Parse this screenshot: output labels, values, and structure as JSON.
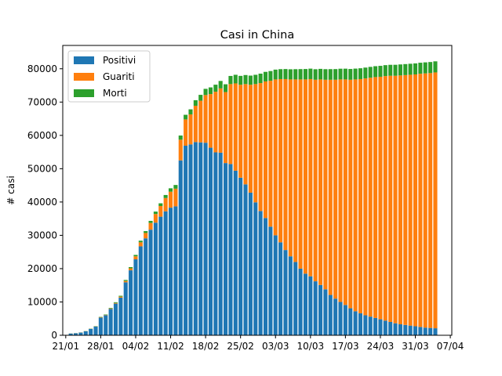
{
  "chart_data": {
    "type": "bar",
    "stacked": true,
    "title": "Casi in China",
    "xlabel": "",
    "ylabel": "# casi",
    "ylim": [
      0,
      87000
    ],
    "yticks": [
      0,
      10000,
      20000,
      30000,
      40000,
      50000,
      60000,
      70000,
      80000
    ],
    "x_start": "2020-01-22",
    "xticks": [
      {
        "date": "2020-01-21",
        "label": "21/01"
      },
      {
        "date": "2020-01-28",
        "label": "28/01"
      },
      {
        "date": "2020-02-04",
        "label": "04/02"
      },
      {
        "date": "2020-02-11",
        "label": "11/02"
      },
      {
        "date": "2020-02-18",
        "label": "18/02"
      },
      {
        "date": "2020-02-25",
        "label": "25/02"
      },
      {
        "date": "2020-03-03",
        "label": "03/03"
      },
      {
        "date": "2020-03-10",
        "label": "10/03"
      },
      {
        "date": "2020-03-17",
        "label": "17/03"
      },
      {
        "date": "2020-03-24",
        "label": "24/03"
      },
      {
        "date": "2020-03-31",
        "label": "31/03"
      },
      {
        "date": "2020-04-07",
        "label": "07/04"
      }
    ],
    "grid": false,
    "legend_position": "top-left",
    "series": [
      {
        "name": "Positivi",
        "color": "#1f77b4",
        "values": [
          520,
          600,
          800,
          1200,
          1900,
          2600,
          5300,
          6000,
          7900,
          9500,
          11300,
          15900,
          19500,
          22800,
          26700,
          29100,
          31700,
          33800,
          35600,
          37200,
          38300,
          38700,
          52500,
          56900,
          57300,
          58000,
          57900,
          57800,
          56300,
          54900,
          54800,
          51700,
          51400,
          49400,
          47300,
          45300,
          42800,
          39900,
          37300,
          35200,
          32600,
          30000,
          27900,
          25600,
          23700,
          22000,
          20000,
          18500,
          17700,
          16200,
          15100,
          13800,
          12100,
          11000,
          10000,
          9100,
          8100,
          7200,
          6600,
          6000,
          5600,
          5200,
          4800,
          4400,
          4000,
          3600,
          3300,
          3100,
          2900,
          2700,
          2500,
          2300,
          2200,
          2100
        ]
      },
      {
        "name": "Guariti",
        "color": "#ff7f0e",
        "values": [
          30,
          30,
          30,
          40,
          50,
          60,
          100,
          100,
          150,
          200,
          300,
          400,
          600,
          900,
          1200,
          1600,
          2000,
          2600,
          3200,
          4000,
          4800,
          5300,
          6200,
          7900,
          9000,
          10900,
          12500,
          14300,
          16100,
          18200,
          19300,
          21300,
          24000,
          26200,
          27900,
          30100,
          32400,
          35500,
          38400,
          41000,
          43800,
          46800,
          49000,
          51300,
          53100,
          54800,
          56800,
          58300,
          59200,
          60500,
          61700,
          62900,
          64600,
          65700,
          66800,
          67700,
          68600,
          69600,
          70300,
          71100,
          71700,
          72300,
          72800,
          73400,
          73900,
          74300,
          74700,
          75000,
          75300,
          75600,
          76000,
          76300,
          76500,
          76800
        ]
      },
      {
        "name": "Morti",
        "color": "#2ca02c",
        "values": [
          17,
          18,
          26,
          42,
          56,
          82,
          106,
          132,
          170,
          213,
          259,
          304,
          361,
          425,
          490,
          563,
          636,
          722,
          811,
          908,
          1016,
          1113,
          1259,
          1380,
          1523,
          1665,
          1770,
          1868,
          2004,
          2118,
          2236,
          2345,
          2442,
          2592,
          2663,
          2715,
          2744,
          2788,
          2835,
          2870,
          2912,
          2943,
          2981,
          3012,
          3044,
          3073,
          3099,
          3119,
          3136,
          3158,
          3169,
          3176,
          3189,
          3199,
          3213,
          3226,
          3237,
          3245,
          3249,
          3253,
          3261,
          3270,
          3277,
          3281,
          3285,
          3291,
          3296,
          3299,
          3304,
          3308,
          3312,
          3318,
          3322,
          3326
        ]
      }
    ]
  }
}
